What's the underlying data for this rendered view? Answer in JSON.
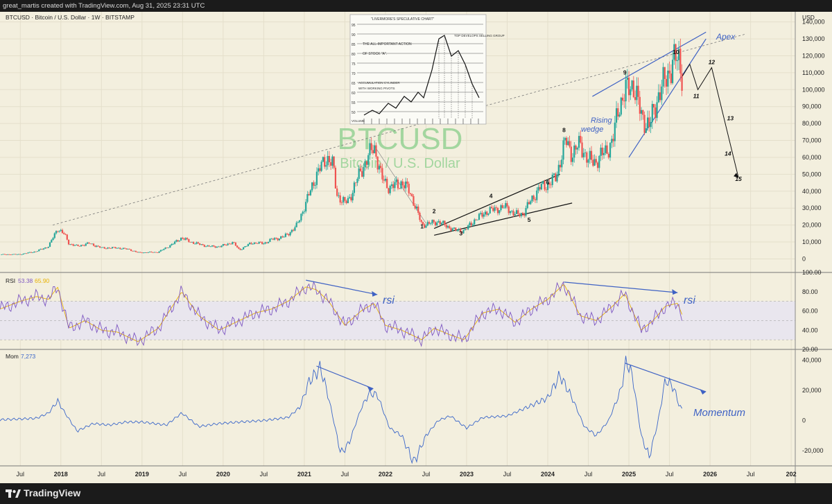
{
  "header": {
    "attribution": "great_martis created with TradingView.com, Aug 31, 2025 23:31 UTC"
  },
  "footer": {
    "brand": "TradingView"
  },
  "colors": {
    "background": "#f3efde",
    "up": "#26a69a",
    "down": "#ef5350",
    "annotation": "#3f62c4",
    "rsi": "#7e57c2",
    "rsi_ma": "#e8b100",
    "mom": "#3a66c9"
  },
  "main_pane": {
    "symbol_line": "BTCUSD · Bitcoin / U.S. Dollar · 1W · BITSTAMP",
    "watermark_symbol": "BTCUSD",
    "watermark_name": "Bitcoin / U.S. Dollar",
    "currency": "USD",
    "annotations": {
      "apex": "Apex",
      "rising_wedge_1": "Rising",
      "rising_wedge_2": "wedge"
    },
    "wave_labels": [
      "1",
      "2",
      "3",
      "4",
      "5",
      "6",
      "8",
      "9",
      "10",
      "11",
      "12",
      "13",
      "14",
      "15"
    ],
    "inset": {
      "title": "\"LIVERMORE'S SPECULATIVE CHART\"",
      "note_top": "TOP DEVELOPS SELLING GROUP",
      "note_1": "THE ALL-IMPORTANT ACTION",
      "note_2": "OF STOCK \"A\".",
      "note_3": "ACCUMULATION CYLINDER",
      "note_4": "WITH WORKING PIVOTS",
      "volume_label": "VOLUME",
      "y_labels": [
        "95",
        "90",
        "85",
        "80",
        "75",
        "70",
        "65",
        "60",
        "55",
        "50"
      ]
    }
  },
  "rsi_pane": {
    "label": "RSI",
    "value1": "53.38",
    "value2": "65.90",
    "annotation": "rsi"
  },
  "mom_pane": {
    "label": "Mom",
    "value": "7,273",
    "annotation": "Momentum"
  },
  "chart_data": [
    {
      "type": "candlestick",
      "title": "BTCUSD · Bitcoin / U.S. Dollar · 1W · BITSTAMP",
      "ylabel": "USD",
      "ylim": [
        -8000,
        146000
      ],
      "y_ticks": [
        "140,000",
        "130,000",
        "120,000",
        "110,000",
        "100,000",
        "90,000",
        "80,000",
        "70,000",
        "60,000",
        "50,000",
        "40,000",
        "30,000",
        "20,000",
        "10,000",
        "0"
      ],
      "x_ticks": [
        "Jul",
        "2018",
        "Jul",
        "2019",
        "Jul",
        "2020",
        "Jul",
        "2021",
        "Jul",
        "2022",
        "Jul",
        "2023",
        "Jul",
        "2024",
        "Jul",
        "2025",
        "Jul",
        "2026",
        "Jul",
        "202"
      ],
      "x_tick_dates": [
        2017.5,
        2018,
        2018.5,
        2019,
        2019.5,
        2020,
        2020.5,
        2021,
        2021.5,
        2022,
        2022.5,
        2023,
        2023.5,
        2024,
        2024.5,
        2025,
        2025.5,
        2026,
        2026.5,
        2027
      ],
      "x_range": [
        2017.25,
        2027.05
      ],
      "price_path": [
        [
          2017.25,
          2600
        ],
        [
          2017.5,
          2700
        ],
        [
          2017.7,
          4500
        ],
        [
          2017.85,
          7500
        ],
        [
          2017.96,
          18000
        ],
        [
          2018.05,
          14000
        ],
        [
          2018.1,
          9000
        ],
        [
          2018.2,
          7500
        ],
        [
          2018.35,
          9200
        ],
        [
          2018.5,
          6500
        ],
        [
          2018.7,
          6500
        ],
        [
          2018.85,
          5500
        ],
        [
          2018.95,
          3700
        ],
        [
          2019.2,
          4000
        ],
        [
          2019.35,
          8000
        ],
        [
          2019.49,
          12500
        ],
        [
          2019.6,
          10000
        ],
        [
          2019.8,
          7500
        ],
        [
          2019.95,
          7200
        ],
        [
          2020.12,
          9800
        ],
        [
          2020.2,
          5300
        ],
        [
          2020.35,
          9500
        ],
        [
          2020.5,
          9200
        ],
        [
          2020.6,
          11500
        ],
        [
          2020.75,
          13000
        ],
        [
          2020.9,
          19000
        ],
        [
          2021.02,
          33000
        ],
        [
          2021.15,
          50000
        ],
        [
          2021.28,
          60000
        ],
        [
          2021.35,
          56000
        ],
        [
          2021.4,
          38000
        ],
        [
          2021.5,
          33000
        ],
        [
          2021.55,
          35000
        ],
        [
          2021.65,
          47000
        ],
        [
          2021.73,
          55000
        ],
        [
          2021.86,
          67000
        ],
        [
          2021.95,
          48000
        ],
        [
          2022.05,
          42000
        ],
        [
          2022.2,
          45000
        ],
        [
          2022.3,
          40000
        ],
        [
          2022.45,
          20000
        ],
        [
          2022.55,
          21000
        ],
        [
          2022.65,
          22000
        ],
        [
          2022.75,
          19500
        ],
        [
          2022.85,
          17000
        ],
        [
          2022.97,
          16500
        ],
        [
          2023.1,
          23000
        ],
        [
          2023.25,
          28000
        ],
        [
          2023.4,
          30000
        ],
        [
          2023.5,
          30500
        ],
        [
          2023.6,
          26000
        ],
        [
          2023.7,
          27000
        ],
        [
          2023.8,
          35000
        ],
        [
          2023.9,
          42000
        ],
        [
          2024.0,
          44000
        ],
        [
          2024.1,
          48000
        ],
        [
          2024.18,
          63000
        ],
        [
          2024.22,
          70000
        ],
        [
          2024.3,
          62000
        ],
        [
          2024.4,
          68000
        ],
        [
          2024.5,
          58000
        ],
        [
          2024.6,
          58000
        ],
        [
          2024.7,
          63000
        ],
        [
          2024.8,
          69000
        ],
        [
          2024.87,
          90000
        ],
        [
          2024.95,
          98000
        ],
        [
          2025.05,
          104000
        ],
        [
          2025.15,
          85000
        ],
        [
          2025.25,
          78000
        ],
        [
          2025.35,
          95000
        ],
        [
          2025.45,
          106000
        ],
        [
          2025.55,
          117000
        ],
        [
          2025.62,
          118000
        ],
        [
          2025.66,
          108000
        ]
      ],
      "projection": [
        [
          2025.66,
          108000
        ],
        [
          2025.75,
          115000
        ],
        [
          2025.85,
          100000
        ],
        [
          2026.02,
          113000
        ],
        [
          2026.35,
          48000
        ]
      ],
      "wave_points": [
        [
          2022.45,
          18000
        ],
        [
          2022.6,
          27000
        ],
        [
          2022.93,
          14000
        ],
        [
          2023.3,
          36000
        ],
        [
          2023.77,
          22000
        ],
        [
          2024.0,
          44000
        ],
        [
          2024.2,
          75000
        ],
        [
          2024.95,
          109000
        ],
        [
          2025.58,
          121000
        ],
        [
          2025.83,
          95000
        ],
        [
          2026.02,
          115000
        ],
        [
          2026.25,
          82000
        ],
        [
          2026.22,
          61000
        ],
        [
          2026.35,
          46000
        ]
      ],
      "trendlines": [
        {
          "name": "long-term dashed",
          "from": [
            2017.9,
            20000
          ],
          "to": [
            2026.45,
            133000
          ]
        },
        {
          "name": "wedge-lower",
          "from": [
            2022.6,
            14000
          ],
          "to": [
            2024.3,
            33000
          ]
        },
        {
          "name": "wedge-upper",
          "from": [
            2022.6,
            18000
          ],
          "to": [
            2024.15,
            50000
          ]
        },
        {
          "name": "rising-wedge-upper",
          "from": [
            2024.55,
            96000
          ],
          "to": [
            2025.95,
            134000
          ]
        },
        {
          "name": "rising-wedge-lower",
          "from": [
            2025.0,
            60000
          ],
          "to": [
            2025.95,
            130000
          ]
        }
      ]
    },
    {
      "type": "line",
      "series_label": "RSI",
      "ylim": [
        20,
        100
      ],
      "y_ticks": [
        "100.00",
        "80.00",
        "60.00",
        "40.00",
        "20.00"
      ],
      "band": [
        30,
        70
      ],
      "x": [
        2017.25,
        2017.5,
        2017.7,
        2017.85,
        2017.96,
        2018.1,
        2018.3,
        2018.5,
        2018.7,
        2018.95,
        2019.2,
        2019.49,
        2019.7,
        2019.95,
        2020.2,
        2020.4,
        2020.6,
        2020.8,
        2021.02,
        2021.15,
        2021.3,
        2021.5,
        2021.7,
        2021.86,
        2022.0,
        2022.2,
        2022.45,
        2022.6,
        2022.8,
        2022.97,
        2023.2,
        2023.4,
        2023.6,
        2023.8,
        2024.0,
        2024.2,
        2024.4,
        2024.6,
        2024.8,
        2024.95,
        2025.15,
        2025.3,
        2025.45,
        2025.6,
        2025.66
      ],
      "values": [
        62,
        70,
        75,
        72,
        85,
        42,
        50,
        40,
        38,
        28,
        42,
        80,
        55,
        40,
        50,
        58,
        62,
        70,
        85,
        82,
        70,
        45,
        60,
        68,
        45,
        40,
        30,
        42,
        35,
        30,
        58,
        62,
        48,
        62,
        72,
        88,
        55,
        50,
        65,
        78,
        40,
        50,
        65,
        68,
        55
      ]
    },
    {
      "type": "line",
      "series_label": "Mom",
      "ylim": [
        -30000,
        47000
      ],
      "y_ticks": [
        "40,000",
        "20,000",
        "0",
        "-20,000"
      ],
      "x": [
        2017.25,
        2017.5,
        2017.7,
        2017.85,
        2017.96,
        2018.05,
        2018.2,
        2018.4,
        2018.6,
        2018.8,
        2019.0,
        2019.3,
        2019.49,
        2019.7,
        2019.95,
        2020.2,
        2020.5,
        2020.8,
        2020.95,
        2021.05,
        2021.2,
        2021.3,
        2021.45,
        2021.55,
        2021.7,
        2021.8,
        2021.9,
        2022.05,
        2022.2,
        2022.35,
        2022.5,
        2022.65,
        2022.8,
        2023.0,
        2023.2,
        2023.5,
        2023.8,
        2024.0,
        2024.15,
        2024.3,
        2024.45,
        2024.6,
        2024.75,
        2024.9,
        2024.97,
        2025.05,
        2025.15,
        2025.25,
        2025.35,
        2025.45,
        2025.55,
        2025.62,
        2025.66
      ],
      "values": [
        500,
        1000,
        1500,
        5000,
        13000,
        5000,
        -7000,
        -2000,
        -3000,
        -1000,
        -1000,
        -3000,
        5000,
        -4000,
        -2000,
        -1000,
        0,
        2000,
        9000,
        25000,
        35000,
        15000,
        -22000,
        -15000,
        8000,
        18000,
        17000,
        -5000,
        -10000,
        -28000,
        -10000,
        0,
        3000,
        -5000,
        2000,
        3000,
        10000,
        15000,
        30000,
        15000,
        -4000,
        -10000,
        0,
        20000,
        40000,
        28000,
        -10000,
        -24000,
        -3000,
        27000,
        22000,
        10000,
        7000
      ]
    }
  ]
}
